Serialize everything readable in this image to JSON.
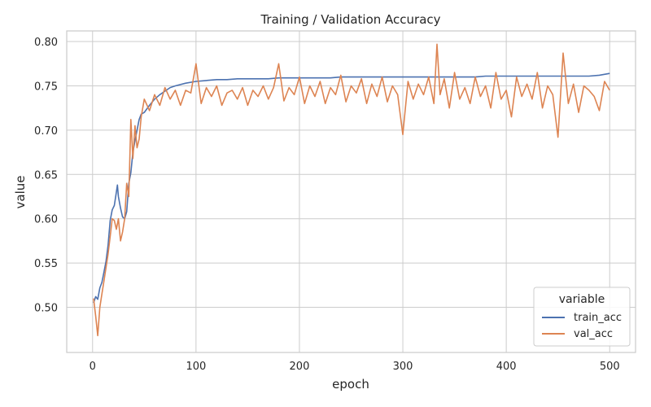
{
  "chart_data": {
    "type": "line",
    "title": "Training / Validation Accuracy",
    "xlabel": "epoch",
    "ylabel": "value",
    "xlim": [
      -25,
      525
    ],
    "ylim": [
      0.449,
      0.812
    ],
    "xticks": [
      0,
      100,
      200,
      300,
      400,
      500
    ],
    "yticks": [
      0.5,
      0.55,
      0.6,
      0.65,
      0.7,
      0.75,
      0.8
    ],
    "grid": true,
    "legend": {
      "title": "variable",
      "placement": "bottom-right"
    },
    "series": [
      {
        "name": "train_acc",
        "color": "#4c72b0",
        "points": [
          [
            1,
            0.505
          ],
          [
            3,
            0.512
          ],
          [
            5,
            0.509
          ],
          [
            7,
            0.522
          ],
          [
            9,
            0.528
          ],
          [
            11,
            0.54
          ],
          [
            13,
            0.552
          ],
          [
            15,
            0.57
          ],
          [
            17,
            0.598
          ],
          [
            19,
            0.61
          ],
          [
            21,
            0.615
          ],
          [
            23,
            0.63
          ],
          [
            24,
            0.638
          ],
          [
            25,
            0.625
          ],
          [
            27,
            0.612
          ],
          [
            29,
            0.602
          ],
          [
            31,
            0.6
          ],
          [
            33,
            0.608
          ],
          [
            35,
            0.64
          ],
          [
            37,
            0.652
          ],
          [
            39,
            0.675
          ],
          [
            41,
            0.688
          ],
          [
            43,
            0.7
          ],
          [
            45,
            0.712
          ],
          [
            47,
            0.718
          ],
          [
            50,
            0.72
          ],
          [
            55,
            0.728
          ],
          [
            60,
            0.735
          ],
          [
            65,
            0.74
          ],
          [
            70,
            0.744
          ],
          [
            75,
            0.748
          ],
          [
            80,
            0.75
          ],
          [
            90,
            0.753
          ],
          [
            100,
            0.755
          ],
          [
            110,
            0.756
          ],
          [
            120,
            0.757
          ],
          [
            130,
            0.757
          ],
          [
            140,
            0.758
          ],
          [
            150,
            0.758
          ],
          [
            160,
            0.758
          ],
          [
            170,
            0.758
          ],
          [
            180,
            0.759
          ],
          [
            190,
            0.759
          ],
          [
            200,
            0.759
          ],
          [
            210,
            0.759
          ],
          [
            220,
            0.759
          ],
          [
            230,
            0.759
          ],
          [
            240,
            0.76
          ],
          [
            250,
            0.76
          ],
          [
            260,
            0.76
          ],
          [
            270,
            0.76
          ],
          [
            280,
            0.76
          ],
          [
            290,
            0.76
          ],
          [
            300,
            0.76
          ],
          [
            310,
            0.76
          ],
          [
            320,
            0.76
          ],
          [
            330,
            0.76
          ],
          [
            340,
            0.76
          ],
          [
            350,
            0.76
          ],
          [
            360,
            0.76
          ],
          [
            370,
            0.76
          ],
          [
            380,
            0.761
          ],
          [
            390,
            0.761
          ],
          [
            400,
            0.761
          ],
          [
            410,
            0.761
          ],
          [
            420,
            0.761
          ],
          [
            430,
            0.761
          ],
          [
            440,
            0.761
          ],
          [
            450,
            0.761
          ],
          [
            460,
            0.761
          ],
          [
            470,
            0.761
          ],
          [
            480,
            0.761
          ],
          [
            490,
            0.762
          ],
          [
            500,
            0.764
          ]
        ]
      },
      {
        "name": "val_acc",
        "color": "#dd8452",
        "points": [
          [
            1,
            0.51
          ],
          [
            3,
            0.49
          ],
          [
            5,
            0.468
          ],
          [
            7,
            0.5
          ],
          [
            9,
            0.515
          ],
          [
            11,
            0.53
          ],
          [
            13,
            0.545
          ],
          [
            15,
            0.56
          ],
          [
            17,
            0.58
          ],
          [
            19,
            0.6
          ],
          [
            21,
            0.598
          ],
          [
            23,
            0.588
          ],
          [
            25,
            0.6
          ],
          [
            27,
            0.575
          ],
          [
            29,
            0.585
          ],
          [
            31,
            0.6
          ],
          [
            33,
            0.64
          ],
          [
            35,
            0.625
          ],
          [
            37,
            0.712
          ],
          [
            39,
            0.668
          ],
          [
            41,
            0.705
          ],
          [
            43,
            0.68
          ],
          [
            45,
            0.69
          ],
          [
            47,
            0.715
          ],
          [
            50,
            0.735
          ],
          [
            55,
            0.722
          ],
          [
            60,
            0.74
          ],
          [
            65,
            0.728
          ],
          [
            70,
            0.748
          ],
          [
            75,
            0.735
          ],
          [
            80,
            0.745
          ],
          [
            85,
            0.728
          ],
          [
            90,
            0.745
          ],
          [
            95,
            0.742
          ],
          [
            100,
            0.775
          ],
          [
            105,
            0.73
          ],
          [
            110,
            0.748
          ],
          [
            115,
            0.738
          ],
          [
            120,
            0.75
          ],
          [
            125,
            0.728
          ],
          [
            130,
            0.742
          ],
          [
            135,
            0.745
          ],
          [
            140,
            0.735
          ],
          [
            145,
            0.748
          ],
          [
            150,
            0.728
          ],
          [
            155,
            0.745
          ],
          [
            160,
            0.738
          ],
          [
            165,
            0.75
          ],
          [
            170,
            0.735
          ],
          [
            175,
            0.748
          ],
          [
            180,
            0.775
          ],
          [
            185,
            0.733
          ],
          [
            190,
            0.748
          ],
          [
            195,
            0.74
          ],
          [
            200,
            0.76
          ],
          [
            205,
            0.73
          ],
          [
            210,
            0.75
          ],
          [
            215,
            0.738
          ],
          [
            220,
            0.755
          ],
          [
            225,
            0.73
          ],
          [
            230,
            0.748
          ],
          [
            235,
            0.74
          ],
          [
            240,
            0.762
          ],
          [
            245,
            0.732
          ],
          [
            250,
            0.75
          ],
          [
            255,
            0.742
          ],
          [
            260,
            0.758
          ],
          [
            265,
            0.73
          ],
          [
            270,
            0.752
          ],
          [
            275,
            0.738
          ],
          [
            280,
            0.76
          ],
          [
            285,
            0.732
          ],
          [
            290,
            0.75
          ],
          [
            295,
            0.74
          ],
          [
            300,
            0.695
          ],
          [
            305,
            0.755
          ],
          [
            310,
            0.735
          ],
          [
            315,
            0.752
          ],
          [
            320,
            0.74
          ],
          [
            325,
            0.76
          ],
          [
            330,
            0.73
          ],
          [
            333,
            0.797
          ],
          [
            336,
            0.74
          ],
          [
            340,
            0.758
          ],
          [
            345,
            0.725
          ],
          [
            350,
            0.765
          ],
          [
            355,
            0.735
          ],
          [
            360,
            0.748
          ],
          [
            365,
            0.73
          ],
          [
            370,
            0.76
          ],
          [
            375,
            0.738
          ],
          [
            380,
            0.75
          ],
          [
            385,
            0.725
          ],
          [
            390,
            0.765
          ],
          [
            395,
            0.735
          ],
          [
            400,
            0.745
          ],
          [
            405,
            0.715
          ],
          [
            410,
            0.76
          ],
          [
            415,
            0.738
          ],
          [
            420,
            0.752
          ],
          [
            425,
            0.735
          ],
          [
            430,
            0.765
          ],
          [
            435,
            0.725
          ],
          [
            440,
            0.75
          ],
          [
            445,
            0.74
          ],
          [
            450,
            0.692
          ],
          [
            455,
            0.787
          ],
          [
            460,
            0.73
          ],
          [
            465,
            0.752
          ],
          [
            470,
            0.72
          ],
          [
            475,
            0.75
          ],
          [
            480,
            0.745
          ],
          [
            485,
            0.738
          ],
          [
            490,
            0.722
          ],
          [
            495,
            0.755
          ],
          [
            500,
            0.745
          ]
        ]
      }
    ]
  }
}
